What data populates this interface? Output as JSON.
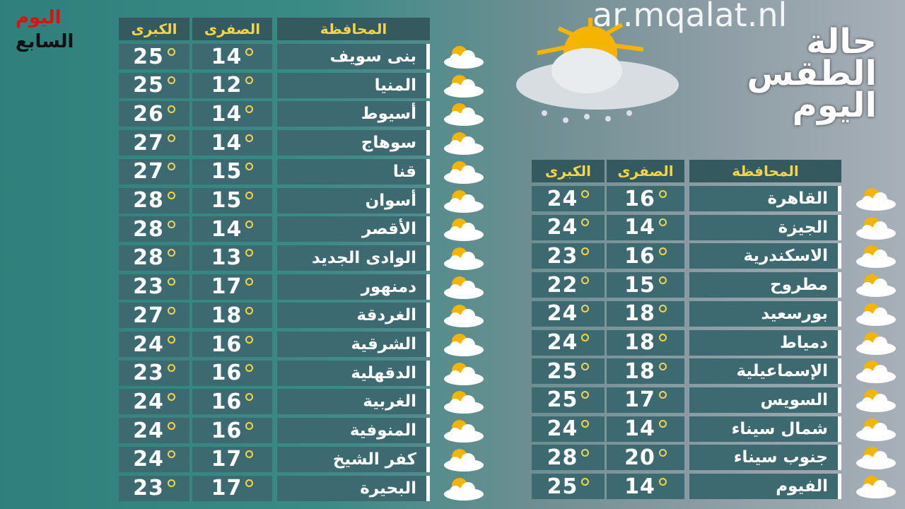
{
  "logo": {
    "lines": [
      "اليوم",
      "السابع"
    ]
  },
  "watermark": "ar.mqalat.nl",
  "title": {
    "lines": [
      "حالة",
      "الطقس",
      "اليوم"
    ]
  },
  "tables": [
    {
      "header": [
        "المحافظة",
        "الصفرى",
        "الكبرى"
      ],
      "rows": [
        [
          "بنى سويف",
          14,
          25
        ],
        [
          "المنيا",
          12,
          25
        ],
        [
          "أسيوط",
          14,
          26
        ],
        [
          "سوهاج",
          14,
          27
        ],
        [
          "قنا",
          15,
          27
        ],
        [
          "أسوان",
          15,
          28
        ],
        [
          "الأقصر",
          14,
          28
        ],
        [
          "الوادى الجديد",
          13,
          28
        ],
        [
          "دمنهور",
          17,
          23
        ],
        [
          "الغردقة",
          18,
          27
        ],
        [
          "الشرقية",
          16,
          24
        ],
        [
          "الدقهلية",
          16,
          23
        ],
        [
          "الغربية",
          16,
          24
        ],
        [
          "المنوفية",
          16,
          24
        ],
        [
          "كفر الشيخ",
          17,
          24
        ],
        [
          "البحيرة",
          17,
          23
        ]
      ]
    },
    {
      "header": [
        "المحافظة",
        "الصفرى",
        "الكبرى"
      ],
      "rows": [
        [
          "القاهرة",
          16,
          24
        ],
        [
          "الجيزة",
          14,
          24
        ],
        [
          "الاسكندرية",
          16,
          23
        ],
        [
          "مطروح",
          15,
          22
        ],
        [
          "بورسعيد",
          18,
          24
        ],
        [
          "دمياط",
          18,
          24
        ],
        [
          "الإسماعيلية",
          18,
          25
        ],
        [
          "السويس",
          17,
          25
        ],
        [
          "شمال سيناء",
          14,
          24
        ],
        [
          "جنوب سيناء",
          20,
          28
        ],
        [
          "الفيوم",
          14,
          25
        ]
      ]
    }
  ]
}
